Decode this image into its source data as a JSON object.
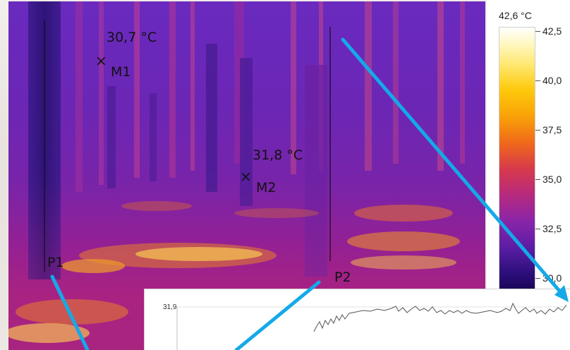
{
  "measurements": [
    {
      "id": "M1",
      "value": "30,7 °C"
    },
    {
      "id": "M2",
      "value": "31,8 °C"
    }
  ],
  "profiles": [
    {
      "id": "P1"
    },
    {
      "id": "P2"
    }
  ],
  "scale": {
    "max_label": "42,6 °C",
    "ticks": [
      "42,5",
      "40,0",
      "37,5",
      "35,0",
      "32,5",
      "30,0"
    ]
  },
  "profile_chart": {
    "y_label": "31,9"
  },
  "colors": {
    "arrow": "#14a9e8",
    "line": "#111111"
  }
}
